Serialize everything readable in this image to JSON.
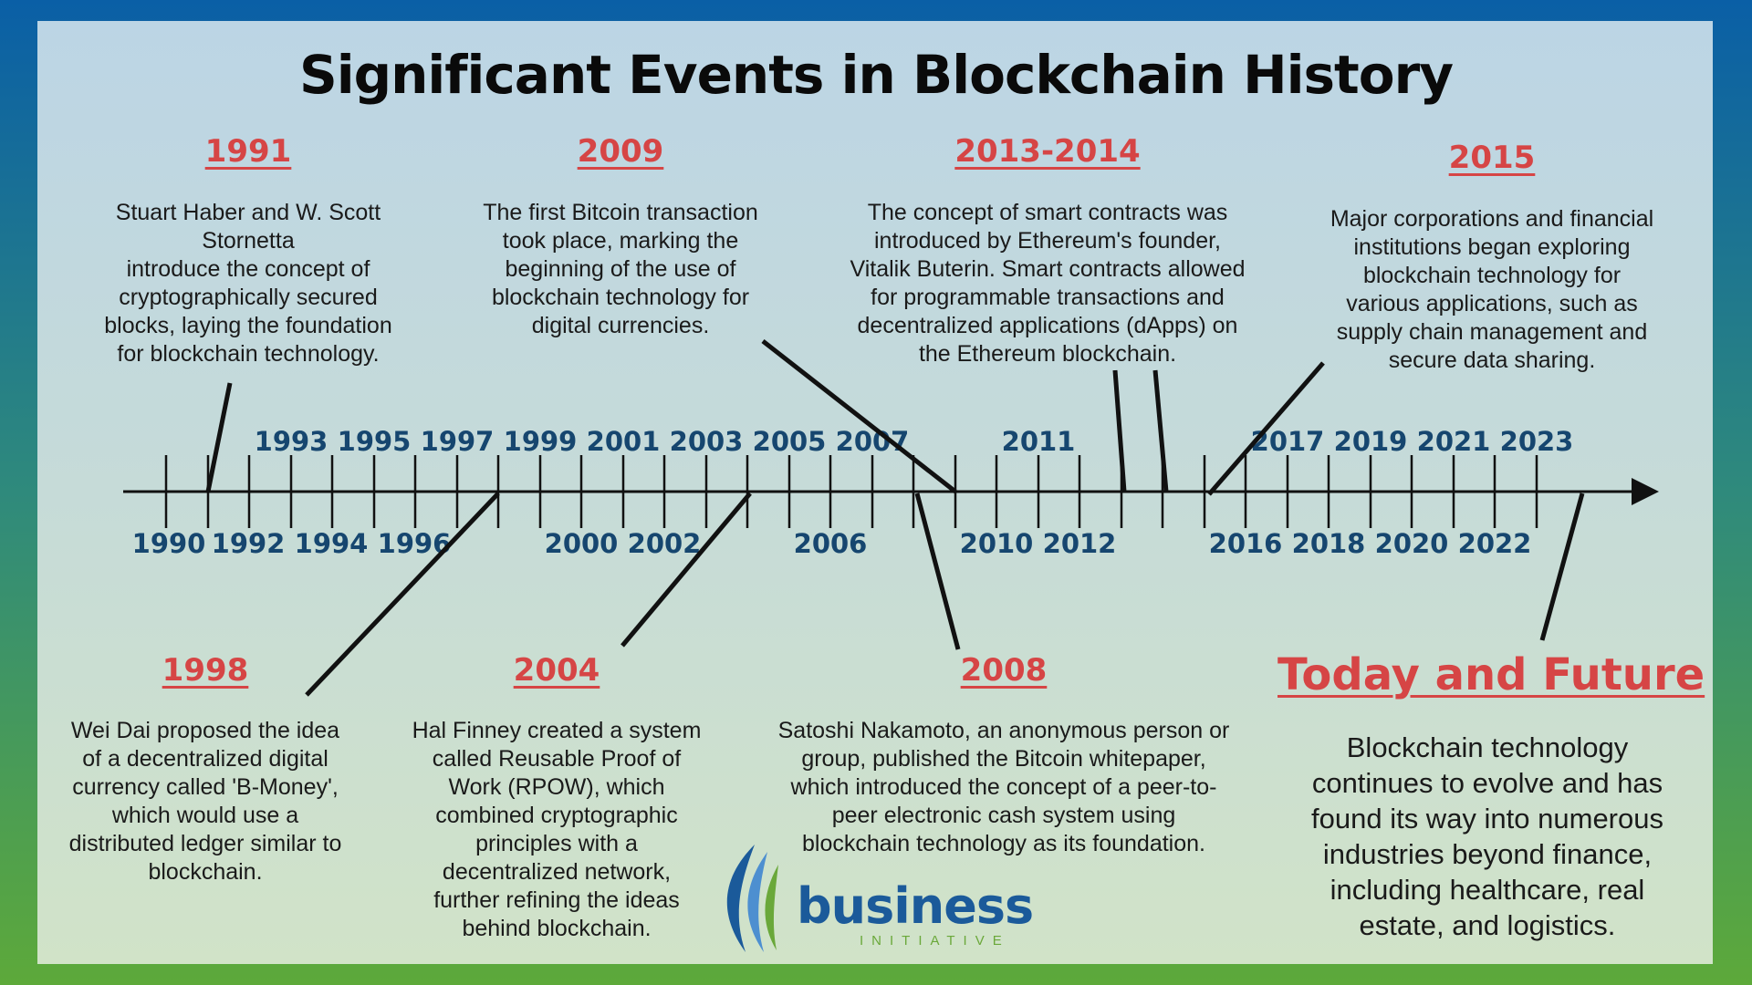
{
  "title": "Significant Events in Blockchain History",
  "colors": {
    "frame_top": "#0a5fa6",
    "frame_bottom": "#5da93a",
    "event_year": "#d64545",
    "axis_year": "#16466f",
    "connector": "#111111"
  },
  "events": [
    {
      "year": "1991",
      "text": "Stuart Haber and W. Scott\nStornetta\nintroduce the concept of\ncryptographically secured\nblocks, laying the foundation\nfor blockchain technology."
    },
    {
      "year": "2009",
      "text": "The first Bitcoin transaction\ntook place, marking the\nbeginning of the use of\nblockchain technology for\ndigital currencies."
    },
    {
      "year": "2013-2014",
      "text": "The concept of smart contracts was\nintroduced by Ethereum's founder,\nVitalik Buterin. Smart contracts allowed\nfor programmable transactions and\ndecentralized applications (dApps) on\nthe Ethereum blockchain."
    },
    {
      "year": "2015",
      "text": "Major corporations and financial\ninstitutions began exploring\nblockchain technology for\nvarious applications, such as\nsupply chain management and\nsecure data sharing."
    },
    {
      "year": "1998",
      "text": "Wei Dai proposed the idea\nof a decentralized digital\ncurrency called 'B-Money',\nwhich would use a\ndistributed ledger similar to\nblockchain."
    },
    {
      "year": "2004",
      "text": "Hal Finney created a system\ncalled Reusable Proof of\nWork (RPOW), which\ncombined cryptographic\nprinciples with a\ndecentralized network,\nfurther refining the ideas\nbehind blockchain."
    },
    {
      "year": "2008",
      "text": "Satoshi Nakamoto, an anonymous person or\ngroup, published the Bitcoin whitepaper,\nwhich introduced the concept of a peer-to-\npeer electronic cash system using\nblockchain technology as its foundation."
    },
    {
      "year": "Today and Future",
      "text": "Blockchain technology\ncontinues to evolve and has\nfound its way into numerous\nindustries beyond finance,\nincluding healthcare, real\nestate, and logistics."
    }
  ],
  "axis": {
    "upper_labels": [
      "1993",
      "1995",
      "1997",
      "1999",
      "2001",
      "2003",
      "2005",
      "2007",
      "2011",
      "2017",
      "2019",
      "2021",
      "2023"
    ],
    "lower_labels": [
      "1990",
      "1992",
      "1994",
      "1996",
      "2000",
      "2002",
      "2006",
      "2010",
      "2012",
      "2016",
      "2018",
      "2020",
      "2022"
    ]
  },
  "logo": {
    "name": "business",
    "tagline": "INITIATIVE"
  }
}
